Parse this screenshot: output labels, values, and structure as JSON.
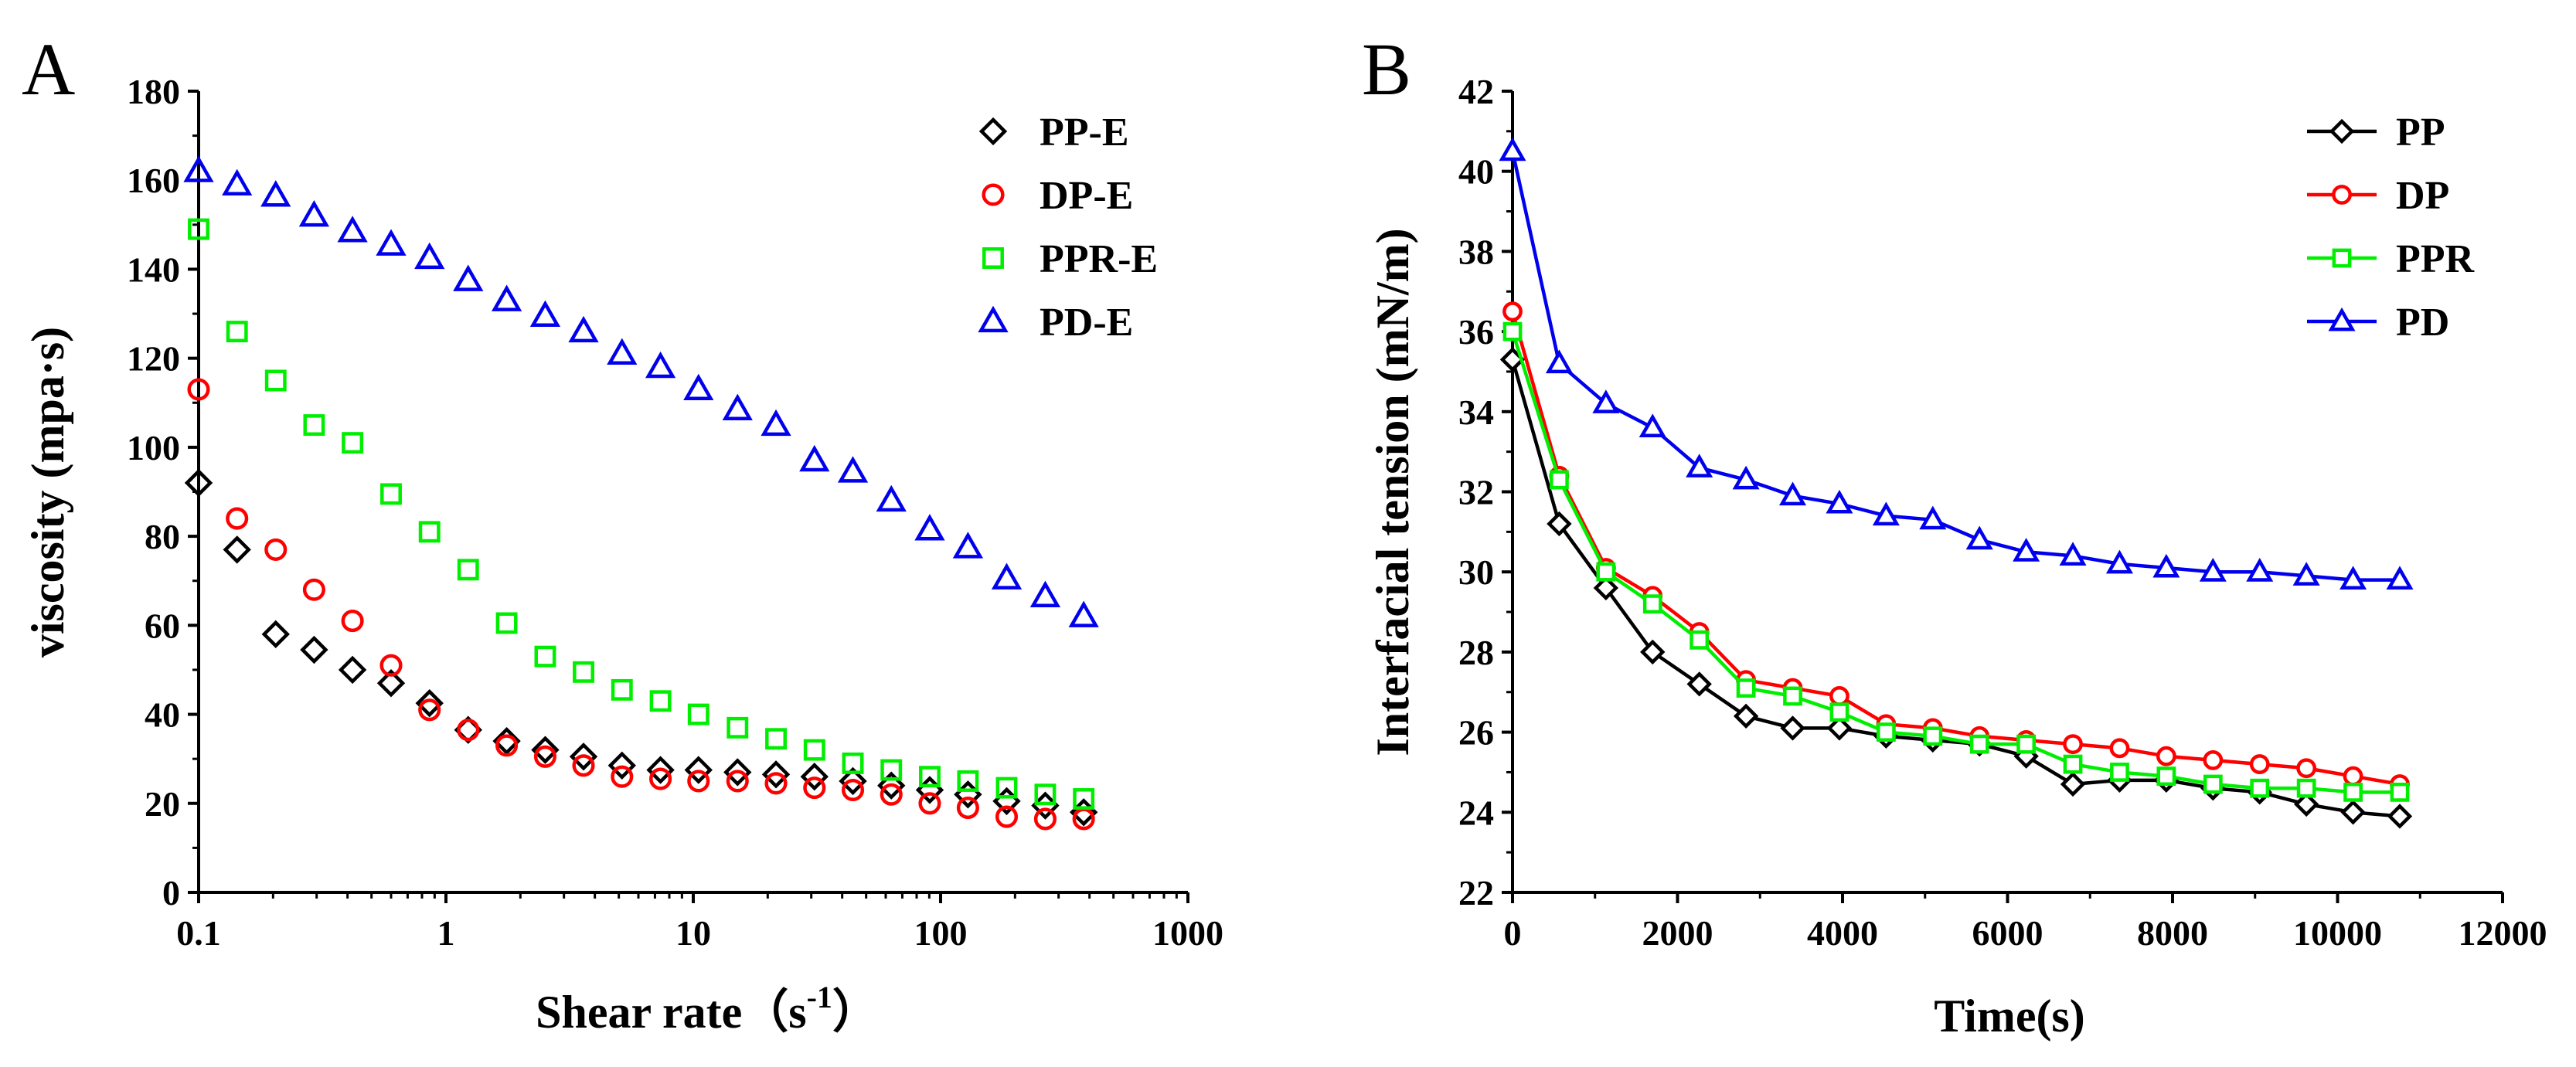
{
  "chart_data": [
    {
      "type": "scatter",
      "panel_label": "A",
      "xlabel": "Shear rate（s",
      "xlabel_sup": "-1",
      "xlabel_close": "）",
      "ylabel": "viscosity (mpa·s)",
      "xscale": "log",
      "xlim": [
        0.1,
        1000
      ],
      "ylim": [
        0,
        180
      ],
      "xticks": [
        0.1,
        1,
        10,
        100,
        1000
      ],
      "xtick_labels": [
        "0.1",
        "1",
        "10",
        "100",
        "1000"
      ],
      "yticks": [
        0,
        20,
        40,
        60,
        80,
        100,
        120,
        140,
        160,
        180
      ],
      "legend_position": "top-right",
      "x": [
        0.1,
        0.143,
        0.205,
        0.293,
        0.419,
        0.6,
        0.858,
        1.23,
        1.76,
        2.52,
        3.6,
        5.15,
        7.37,
        10.5,
        15.1,
        21.6,
        30.9,
        44.2,
        63.2,
        90.4,
        129,
        185,
        265,
        379
      ],
      "series": [
        {
          "name": "PP-E",
          "marker": "diamond",
          "color": "#000000",
          "values": [
            92,
            77,
            58,
            54.5,
            50,
            47,
            42.5,
            36.5,
            34,
            32,
            30.5,
            28.5,
            27.5,
            27.5,
            27,
            26.5,
            26,
            25,
            24,
            23,
            22,
            20.5,
            19.5,
            18
          ]
        },
        {
          "name": "DP-E",
          "marker": "circle",
          "color": "#ff0000",
          "values": [
            113,
            84,
            77,
            68,
            61,
            51,
            41,
            36.5,
            33,
            30.5,
            28.5,
            26,
            25.5,
            25,
            25,
            24.5,
            23.5,
            23,
            22,
            20,
            19,
            17,
            16.5,
            16.5
          ]
        },
        {
          "name": "PPR-E",
          "marker": "square",
          "color": "#00ee00",
          "values": [
            149,
            126,
            115,
            105,
            101,
            89.5,
            81,
            72.5,
            60.5,
            53,
            49.5,
            45.5,
            43,
            40,
            37,
            34.5,
            32,
            29,
            27.5,
            26,
            25,
            23.5,
            22,
            21
          ]
        },
        {
          "name": "PD-E",
          "marker": "triangle",
          "color": "#0000ee",
          "values": [
            162,
            159,
            156.5,
            152,
            148.5,
            145.5,
            142.5,
            137.5,
            133,
            129.5,
            126,
            121,
            118,
            113,
            108.5,
            105,
            97,
            94.5,
            88,
            81.5,
            77.5,
            70.5,
            66.5,
            62
          ]
        }
      ]
    },
    {
      "type": "line",
      "panel_label": "B",
      "xlabel": "Time(s)",
      "ylabel": "Interfacial tension (mN/m)",
      "xlim": [
        0,
        12000
      ],
      "ylim": [
        22,
        42
      ],
      "xticks": [
        0,
        2000,
        4000,
        6000,
        8000,
        10000,
        12000
      ],
      "yticks": [
        22,
        24,
        26,
        28,
        30,
        32,
        34,
        36,
        38,
        40,
        42
      ],
      "legend_position": "top-right",
      "x": [
        0,
        566,
        1132,
        1698,
        2264,
        2830,
        3396,
        3962,
        4528,
        5094,
        5660,
        6226,
        6792,
        7358,
        7924,
        8490,
        9056,
        9622,
        10188,
        10754
      ],
      "series": [
        {
          "name": "PP",
          "marker": "diamond",
          "color": "#000000",
          "values": [
            35.3,
            31.2,
            29.6,
            28.0,
            27.2,
            26.4,
            26.1,
            26.1,
            25.9,
            25.8,
            25.7,
            25.4,
            24.7,
            24.8,
            24.8,
            24.6,
            24.5,
            24.2,
            24.0,
            23.9
          ]
        },
        {
          "name": "DP",
          "marker": "circle",
          "color": "#ff0000",
          "values": [
            36.5,
            32.4,
            30.1,
            29.4,
            28.5,
            27.3,
            27.1,
            26.9,
            26.2,
            26.1,
            25.9,
            25.8,
            25.7,
            25.6,
            25.4,
            25.3,
            25.2,
            25.1,
            24.9,
            24.7
          ]
        },
        {
          "name": "PPR",
          "marker": "square",
          "color": "#00ee00",
          "values": [
            36.0,
            32.3,
            30.0,
            29.2,
            28.3,
            27.1,
            26.9,
            26.5,
            26.0,
            25.9,
            25.7,
            25.7,
            25.2,
            25.0,
            24.9,
            24.7,
            24.6,
            24.6,
            24.5,
            24.5
          ]
        },
        {
          "name": "PD",
          "marker": "triangle",
          "color": "#0000ee",
          "values": [
            40.5,
            35.2,
            34.2,
            33.6,
            32.6,
            32.3,
            31.9,
            31.7,
            31.4,
            31.3,
            30.8,
            30.5,
            30.4,
            30.2,
            30.1,
            30.0,
            30.0,
            29.9,
            29.8,
            29.8
          ]
        }
      ]
    }
  ]
}
